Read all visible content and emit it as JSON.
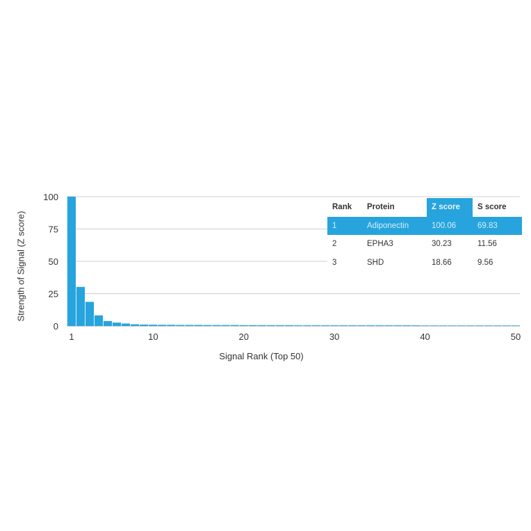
{
  "chart_data": {
    "type": "bar",
    "xlabel": "Signal Rank (Top 50)",
    "ylabel": "Strength of Signal (Z score)",
    "xlim": [
      1,
      50
    ],
    "ylim": [
      0,
      100
    ],
    "xticks": [
      "1",
      "10",
      "20",
      "30",
      "40",
      "50"
    ],
    "yticks": [
      "0",
      "25",
      "50",
      "75",
      "100"
    ],
    "grid": true,
    "bar_color": "#27a4dd",
    "categories": [
      1,
      2,
      3,
      4,
      5,
      6,
      7,
      8,
      9,
      10,
      11,
      12,
      13,
      14,
      15,
      16,
      17,
      18,
      19,
      20,
      21,
      22,
      23,
      24,
      25,
      26,
      27,
      28,
      29,
      30,
      31,
      32,
      33,
      34,
      35,
      36,
      37,
      38,
      39,
      40,
      41,
      42,
      43,
      44,
      45,
      46,
      47,
      48,
      49,
      50
    ],
    "values": [
      100.06,
      30.23,
      18.66,
      8.2,
      3.8,
      2.6,
      1.9,
      1.3,
      1.1,
      1.0,
      0.9,
      0.9,
      0.8,
      0.8,
      0.8,
      0.7,
      0.7,
      0.7,
      0.7,
      0.6,
      0.6,
      0.6,
      0.6,
      0.6,
      0.6,
      0.5,
      0.5,
      0.5,
      0.5,
      0.5,
      0.5,
      0.5,
      0.5,
      0.5,
      0.5,
      0.5,
      0.5,
      0.5,
      0.5,
      0.4,
      0.4,
      0.4,
      0.4,
      0.4,
      0.4,
      0.4,
      0.4,
      0.4,
      0.4,
      0.4
    ]
  },
  "table": {
    "headers": [
      "Rank",
      "Protein",
      "Z score",
      "S score"
    ],
    "highlight_color": "#27a4dd",
    "rows": [
      {
        "rank": "1",
        "protein": "Adiponectin",
        "z": "100.06",
        "s": "69.83"
      },
      {
        "rank": "2",
        "protein": "EPHA3",
        "z": "30.23",
        "s": "11.56"
      },
      {
        "rank": "3",
        "protein": "SHD",
        "z": "18.66",
        "s": "9.56"
      }
    ]
  }
}
